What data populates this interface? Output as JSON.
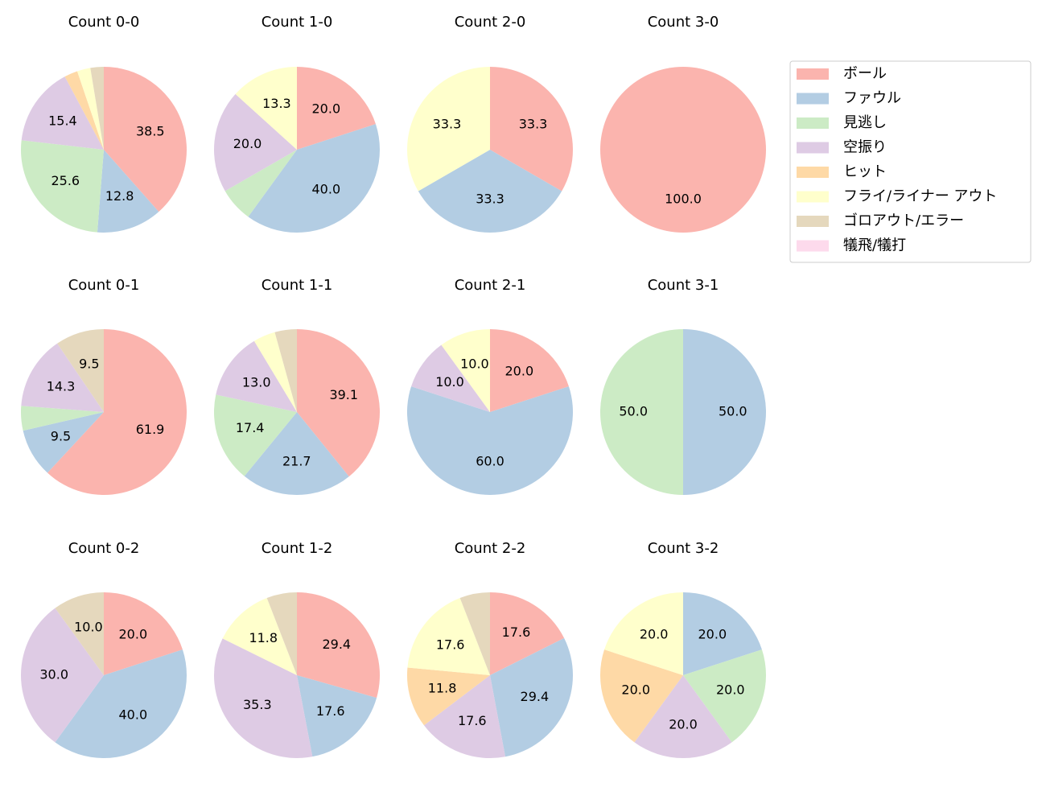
{
  "legend": {
    "entries": [
      {
        "name": "ボール",
        "color": "#fbb4ae"
      },
      {
        "name": "ファウル",
        "color": "#b3cde3"
      },
      {
        "name": "見逃し",
        "color": "#ccebc5"
      },
      {
        "name": "空振り",
        "color": "#decbe4"
      },
      {
        "name": "ヒット",
        "color": "#fed9a6"
      },
      {
        "name": "フライ/ライナー アウト",
        "color": "#ffffcc"
      },
      {
        "name": "ゴロアウト/エラー",
        "color": "#e5d8bd"
      },
      {
        "name": "犠飛/犠打",
        "color": "#fddaec"
      }
    ]
  },
  "chart_data": [
    {
      "type": "pie",
      "title": "Count 0-0",
      "values": [
        38.5,
        12.8,
        25.6,
        15.4,
        2.6,
        2.6,
        2.6,
        0
      ],
      "value_labels": [
        "38.5",
        "12.8",
        "25.6",
        "15.4",
        null,
        null,
        null,
        null
      ]
    },
    {
      "type": "pie",
      "title": "Count 1-0",
      "values": [
        20.0,
        40.0,
        6.7,
        20.0,
        0,
        13.3,
        0,
        0
      ],
      "value_labels": [
        "20.0",
        "40.0",
        null,
        "20.0",
        null,
        "13.3",
        null,
        null
      ]
    },
    {
      "type": "pie",
      "title": "Count 2-0",
      "values": [
        33.3,
        33.3,
        0,
        0,
        0,
        33.3,
        0,
        0
      ],
      "value_labels": [
        "33.3",
        "33.3",
        null,
        null,
        null,
        "33.3",
        null,
        null
      ]
    },
    {
      "type": "pie",
      "title": "Count 3-0",
      "values": [
        100,
        0,
        0,
        0,
        0,
        0,
        0,
        0
      ],
      "value_labels": [
        "100.0",
        null,
        null,
        null,
        null,
        null,
        null,
        null
      ]
    },
    {
      "type": "pie",
      "title": "Count 0-1",
      "values": [
        61.9,
        9.5,
        4.8,
        14.3,
        0,
        0,
        9.5,
        0
      ],
      "value_labels": [
        "61.9",
        "9.5",
        null,
        "14.3",
        null,
        null,
        "9.5",
        null
      ]
    },
    {
      "type": "pie",
      "title": "Count 1-1",
      "values": [
        39.1,
        21.7,
        17.4,
        13.0,
        0,
        4.3,
        4.3,
        0
      ],
      "value_labels": [
        "39.1",
        "21.7",
        "17.4",
        "13.0",
        null,
        null,
        null,
        null
      ]
    },
    {
      "type": "pie",
      "title": "Count 2-1",
      "values": [
        20.0,
        60.0,
        0,
        10.0,
        0,
        10.0,
        0,
        0
      ],
      "value_labels": [
        "20.0",
        "60.0",
        null,
        "10.0",
        null,
        "10.0",
        null,
        null
      ]
    },
    {
      "type": "pie",
      "title": "Count 3-1",
      "values": [
        0,
        50.0,
        50.0,
        0,
        0,
        0,
        0,
        0
      ],
      "value_labels": [
        null,
        "50.0",
        "50.0",
        null,
        null,
        null,
        null,
        null
      ]
    },
    {
      "type": "pie",
      "title": "Count 0-2",
      "values": [
        20.0,
        40.0,
        0,
        30.0,
        0,
        0,
        10.0,
        0
      ],
      "value_labels": [
        "20.0",
        "40.0",
        null,
        "30.0",
        null,
        null,
        "10.0",
        null
      ]
    },
    {
      "type": "pie",
      "title": "Count 1-2",
      "values": [
        29.4,
        17.6,
        0,
        35.3,
        0,
        11.8,
        5.9,
        0
      ],
      "value_labels": [
        "29.4",
        "17.6",
        null,
        "35.3",
        null,
        "11.8",
        null,
        null
      ]
    },
    {
      "type": "pie",
      "title": "Count 2-2",
      "values": [
        17.6,
        29.4,
        0,
        17.6,
        11.8,
        17.6,
        5.9,
        0
      ],
      "value_labels": [
        "17.6",
        "29.4",
        null,
        "17.6",
        "11.8",
        "17.6",
        null,
        null
      ]
    },
    {
      "type": "pie",
      "title": "Count 3-2",
      "values": [
        0,
        20.0,
        20.0,
        20.0,
        20.0,
        20.0,
        0,
        0
      ],
      "value_labels": [
        null,
        "20.0",
        "20.0",
        "20.0",
        "20.0",
        "20.0",
        null,
        null
      ]
    }
  ]
}
